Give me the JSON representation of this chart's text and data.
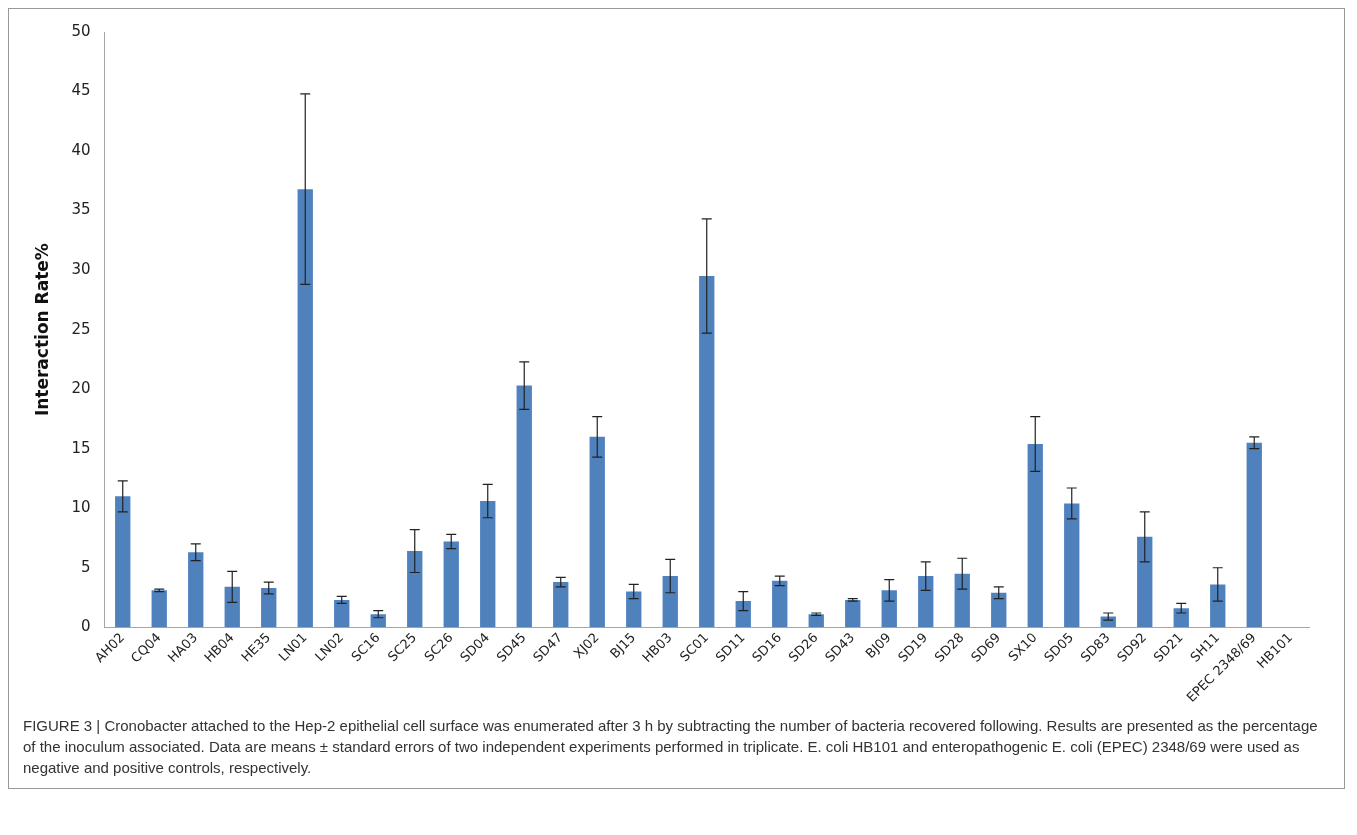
{
  "chart_data": {
    "type": "bar",
    "ylabel": "Interaction Rate%",
    "categories": [
      "AH02",
      "CQ04",
      "HA03",
      "HB04",
      "HE35",
      "LN01",
      "LN02",
      "SC16",
      "SC25",
      "SC26",
      "SD04",
      "SD45",
      "SD47",
      "XJ02",
      "BJ15",
      "HB03",
      "SC01",
      "SD11",
      "SD16",
      "SD26",
      "SD43",
      "BJ09",
      "SD19",
      "SD28",
      "SD69",
      "SX10",
      "SD05",
      "SD83",
      "SD92",
      "SD21",
      "SH11",
      "EPEC 2348/69",
      "HB101"
    ],
    "values": [
      11.0,
      3.1,
      6.3,
      3.4,
      3.3,
      36.8,
      2.3,
      1.1,
      6.4,
      7.2,
      10.6,
      20.3,
      3.8,
      16.0,
      3.0,
      4.3,
      29.5,
      2.2,
      3.9,
      1.1,
      2.3,
      3.1,
      4.3,
      4.5,
      2.9,
      15.4,
      10.4,
      0.9,
      7.6,
      1.6,
      3.6,
      15.5,
      0
    ],
    "errors": [
      1.3,
      0.1,
      0.7,
      1.3,
      0.5,
      8.0,
      0.3,
      0.3,
      1.8,
      0.6,
      1.4,
      2.0,
      0.4,
      1.7,
      0.6,
      1.4,
      4.8,
      0.8,
      0.4,
      0.1,
      0.1,
      0.9,
      1.2,
      1.3,
      0.5,
      2.3,
      1.3,
      0.3,
      2.1,
      0.4,
      1.4,
      0.5,
      null
    ],
    "color": "#4f81bd",
    "ylim": [
      0,
      50
    ],
    "yticks": [
      0,
      5,
      10,
      15,
      20,
      25,
      30,
      35,
      40,
      45,
      50
    ],
    "grid": false,
    "legend": false,
    "annotations": [
      "FIGURE 3 | Cronobacter attached to the Hep-2 epithelial cell surface was enumerated after 3 h by subtracting the number of bacteria recovered following. Results are presented as the percentage of the inoculum associated. Data are means ± standard errors of two independent experiments performed in triplicate. E. coli HB101 and enteropathogenic E. coli (EPEC) 2348/69 were used as negative and positive controls, respectively."
    ]
  }
}
